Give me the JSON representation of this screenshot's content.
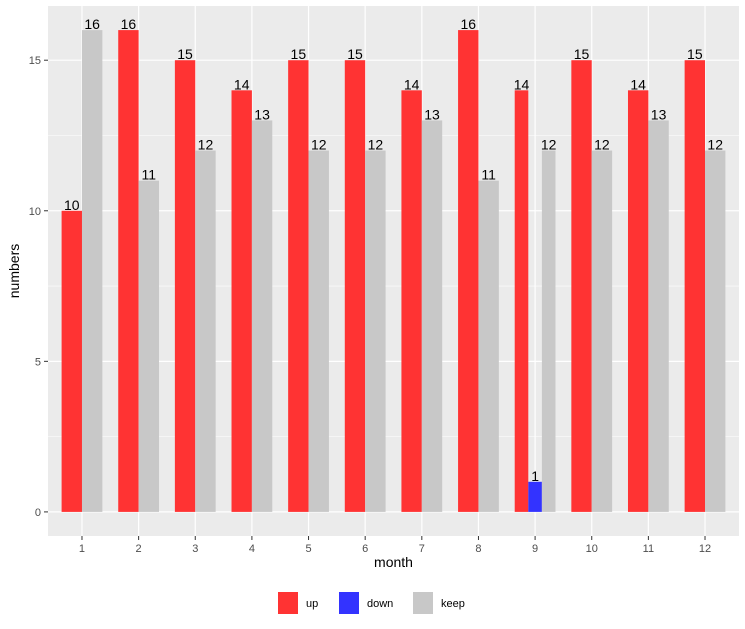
{
  "chart_data": {
    "type": "bar",
    "categories": [
      "1",
      "2",
      "3",
      "4",
      "5",
      "6",
      "7",
      "8",
      "9",
      "10",
      "11",
      "12"
    ],
    "series": [
      {
        "name": "up",
        "color": "#ff3333",
        "values": [
          10,
          16,
          15,
          14,
          15,
          15,
          14,
          16,
          14,
          15,
          14,
          15
        ]
      },
      {
        "name": "down",
        "color": "#3333ff",
        "values": [
          null,
          null,
          null,
          null,
          null,
          null,
          null,
          null,
          1,
          null,
          null,
          null
        ]
      },
      {
        "name": "keep",
        "color": "#c8c8c8",
        "values": [
          16,
          11,
          12,
          13,
          12,
          12,
          13,
          11,
          12,
          12,
          13,
          12
        ]
      }
    ],
    "xlabel": "month",
    "ylabel": "numbers",
    "ylim": [
      -0.8,
      16.8
    ],
    "yticks": [
      0,
      5,
      10,
      15
    ],
    "grid": true,
    "legend_position": "bottom"
  },
  "colors": {
    "panel_background": "#ebebeb",
    "grid_major": "#ffffff"
  }
}
